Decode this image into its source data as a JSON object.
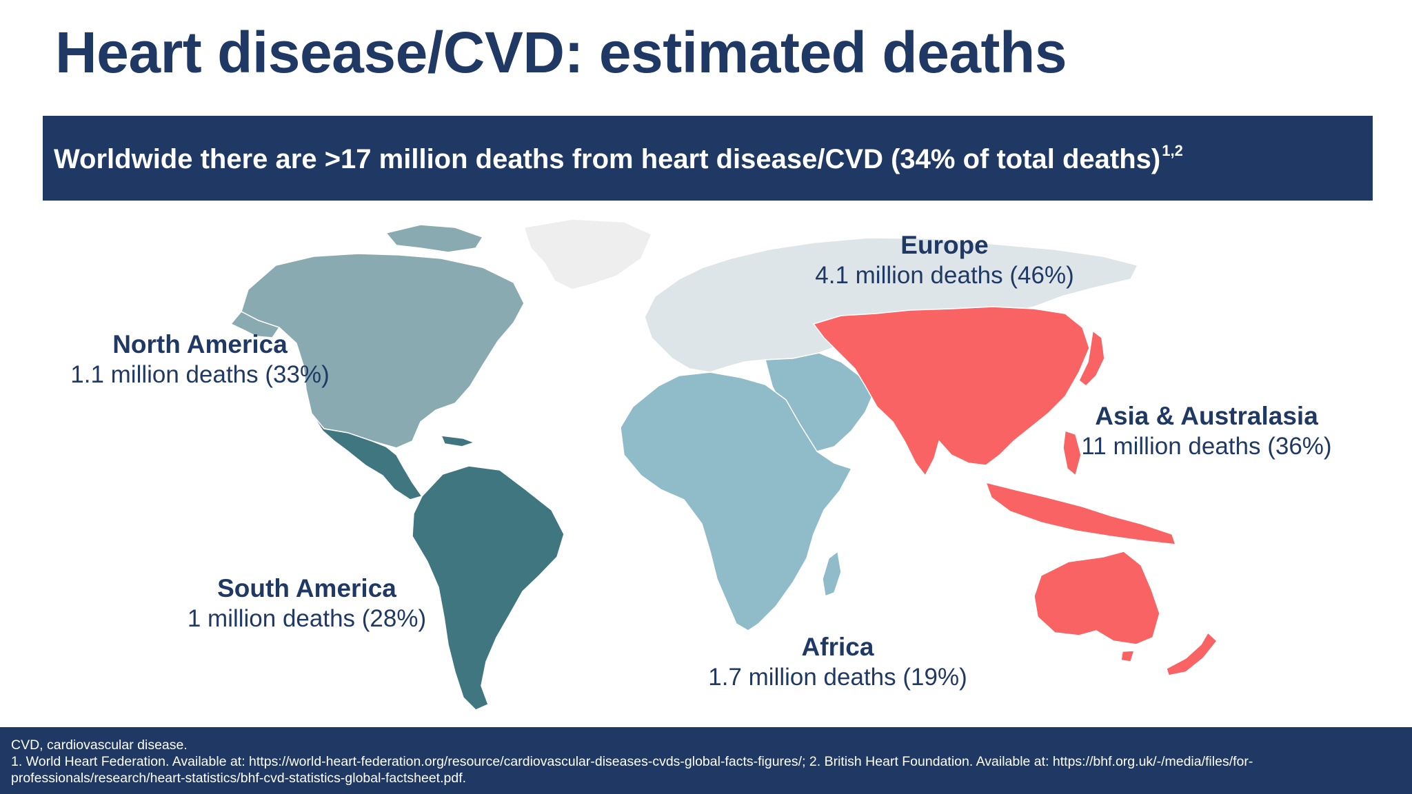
{
  "slide": {
    "title": "Heart disease/CVD: estimated deaths",
    "banner_text": "Worldwide there are >17 million deaths from heart disease/CVD (34% of total deaths)",
    "banner_superscript": "1,2"
  },
  "map": {
    "regions": [
      {
        "name": "North America",
        "stat": "1.1 million deaths (33%)",
        "color": "#8aaab2"
      },
      {
        "name": "South America",
        "stat": "1 million deaths (28%)",
        "color": "#3f7680"
      },
      {
        "name": "Europe",
        "stat": "4.1 million deaths (46%)",
        "color": "#dde5e8"
      },
      {
        "name": "Africa",
        "stat": "1.7 million deaths (19%)",
        "color": "#8fbcc8"
      },
      {
        "name": "Asia & Australasia",
        "stat": "11 million deaths (36%)",
        "color": "#f96363"
      }
    ],
    "colors": {
      "greenland": "#eeeeee",
      "middle_east": "#8fbcc8",
      "central_america": "#3f7680"
    }
  },
  "footer": {
    "abbreviation": "CVD, cardiovascular disease.",
    "reference_line1": "1. World Heart Federation. Available at: https://world-heart-federation.org/resource/cardiovascular-diseases-cvds-global-facts-figures/; 2. British Heart Foundation. Available at: https://bhf.org.uk/-/media/files/for-",
    "reference_line2": "professionals/research/heart-statistics/bhf-cvd-statistics-global-factsheet.pdf."
  }
}
